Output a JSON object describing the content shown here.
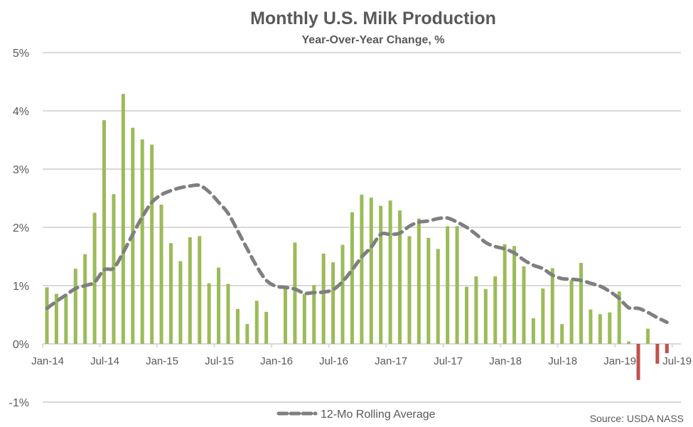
{
  "chart_data": {
    "type": "bar",
    "title": "Monthly U.S. Milk Production",
    "subtitle": "Year-Over-Year Change, %",
    "xlabel": "",
    "ylabel": "",
    "ylim": [
      -1,
      5
    ],
    "y_ticks": [
      -1,
      0,
      1,
      2,
      3,
      4,
      5
    ],
    "y_tick_labels": [
      "-1%",
      "0%",
      "1%",
      "2%",
      "3%",
      "4%",
      "5%"
    ],
    "x_tick_labels": [
      "Jan-14",
      "Jul-14",
      "Jan-15",
      "Jul-15",
      "Jan-16",
      "Jul-16",
      "Jan-17",
      "Jul-17",
      "Jan-18",
      "Jul-18",
      "Jan-19",
      "Jul-19"
    ],
    "grid": true,
    "legend_position": "bottom",
    "source": "Source: USDA NASS",
    "colors": {
      "positive": "#9bbb59",
      "negative": "#c0504d",
      "average_line": "#7f7f7f",
      "grid": "#d9d9d9",
      "text": "#595959"
    },
    "categories": [
      "Jan-14",
      "Feb-14",
      "Mar-14",
      "Apr-14",
      "May-14",
      "Jun-14",
      "Jul-14",
      "Aug-14",
      "Sep-14",
      "Oct-14",
      "Nov-14",
      "Dec-14",
      "Jan-15",
      "Feb-15",
      "Mar-15",
      "Apr-15",
      "May-15",
      "Jun-15",
      "Jul-15",
      "Aug-15",
      "Sep-15",
      "Oct-15",
      "Nov-15",
      "Dec-15",
      "Jan-16",
      "Feb-16",
      "Mar-16",
      "Apr-16",
      "May-16",
      "Jun-16",
      "Jul-16",
      "Aug-16",
      "Sep-16",
      "Oct-16",
      "Nov-16",
      "Dec-16",
      "Jan-17",
      "Feb-17",
      "Mar-17",
      "Apr-17",
      "May-17",
      "Jun-17",
      "Jul-17",
      "Aug-17",
      "Sep-17",
      "Oct-17",
      "Nov-17",
      "Dec-17",
      "Jan-18",
      "Feb-18",
      "Mar-18",
      "Apr-18",
      "May-18",
      "Jun-18",
      "Jul-18",
      "Aug-18",
      "Sep-18",
      "Oct-18",
      "Nov-18",
      "Dec-18",
      "Jan-19",
      "Feb-19",
      "Mar-19",
      "Apr-19",
      "May-19",
      "Jun-19"
    ],
    "series": [
      {
        "name": "YoY Change",
        "type": "bar",
        "values": [
          0.97,
          0.86,
          0.84,
          1.29,
          1.54,
          2.25,
          3.84,
          2.57,
          4.29,
          3.71,
          3.51,
          3.42,
          2.39,
          1.73,
          1.42,
          1.83,
          1.85,
          1.04,
          1.31,
          1.03,
          0.6,
          0.34,
          0.74,
          0.55,
          0.0,
          0.98,
          1.74,
          0.86,
          1.01,
          1.55,
          1.4,
          1.7,
          2.26,
          2.56,
          2.51,
          2.37,
          2.46,
          2.29,
          1.85,
          2.15,
          1.82,
          1.63,
          2.02,
          2.02,
          0.98,
          1.16,
          0.94,
          1.16,
          1.71,
          1.68,
          1.33,
          0.44,
          0.95,
          1.3,
          0.34,
          1.09,
          1.39,
          0.59,
          0.51,
          0.54,
          0.9,
          0.04,
          -0.62,
          0.26,
          -0.34,
          -0.16
        ]
      },
      {
        "name": "12-Mo Rolling Average",
        "type": "line",
        "values": [
          0.61,
          0.73,
          0.84,
          0.95,
          1.0,
          1.06,
          1.27,
          1.3,
          1.57,
          1.88,
          2.18,
          2.43,
          2.56,
          2.63,
          2.68,
          2.71,
          2.72,
          2.61,
          2.43,
          2.24,
          1.94,
          1.63,
          1.33,
          1.09,
          0.99,
          0.97,
          0.94,
          0.87,
          0.88,
          0.89,
          0.93,
          1.07,
          1.27,
          1.49,
          1.66,
          1.88,
          1.88,
          1.9,
          2.02,
          2.09,
          2.11,
          2.15,
          2.16,
          2.09,
          2.0,
          1.88,
          1.74,
          1.67,
          1.63,
          1.56,
          1.44,
          1.35,
          1.29,
          1.18,
          1.12,
          1.11,
          1.09,
          1.04,
          0.99,
          0.9,
          0.78,
          0.62,
          0.61,
          0.54,
          0.45,
          0.37
        ]
      }
    ],
    "legend": [
      {
        "label": "12-Mo Rolling Average",
        "style": "dashed-line"
      }
    ]
  }
}
